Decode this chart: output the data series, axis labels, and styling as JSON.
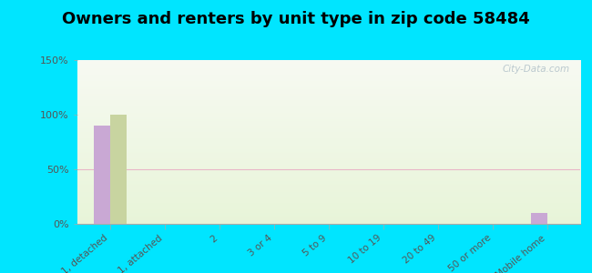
{
  "title": "Owners and renters by unit type in zip code 58484",
  "categories": [
    "1, detached",
    "1, attached",
    "2",
    "3 or 4",
    "5 to 9",
    "10 to 19",
    "20 to 49",
    "50 or more",
    "Mobile home"
  ],
  "owner_values": [
    90,
    0,
    0,
    0,
    0,
    0,
    0,
    0,
    10
  ],
  "renter_values": [
    100,
    0,
    0,
    0,
    0,
    0,
    0,
    0,
    0
  ],
  "owner_color": "#c9a8d4",
  "renter_color": "#c8d4a0",
  "ylim": [
    0,
    150
  ],
  "yticks": [
    0,
    50,
    100,
    150
  ],
  "ytick_labels": [
    "0%",
    "50%",
    "100%",
    "150%"
  ],
  "background_color": "#00e5ff",
  "grid_color": "#e8d8e8",
  "title_fontsize": 13,
  "watermark": "City-Data.com",
  "bar_width": 0.3
}
